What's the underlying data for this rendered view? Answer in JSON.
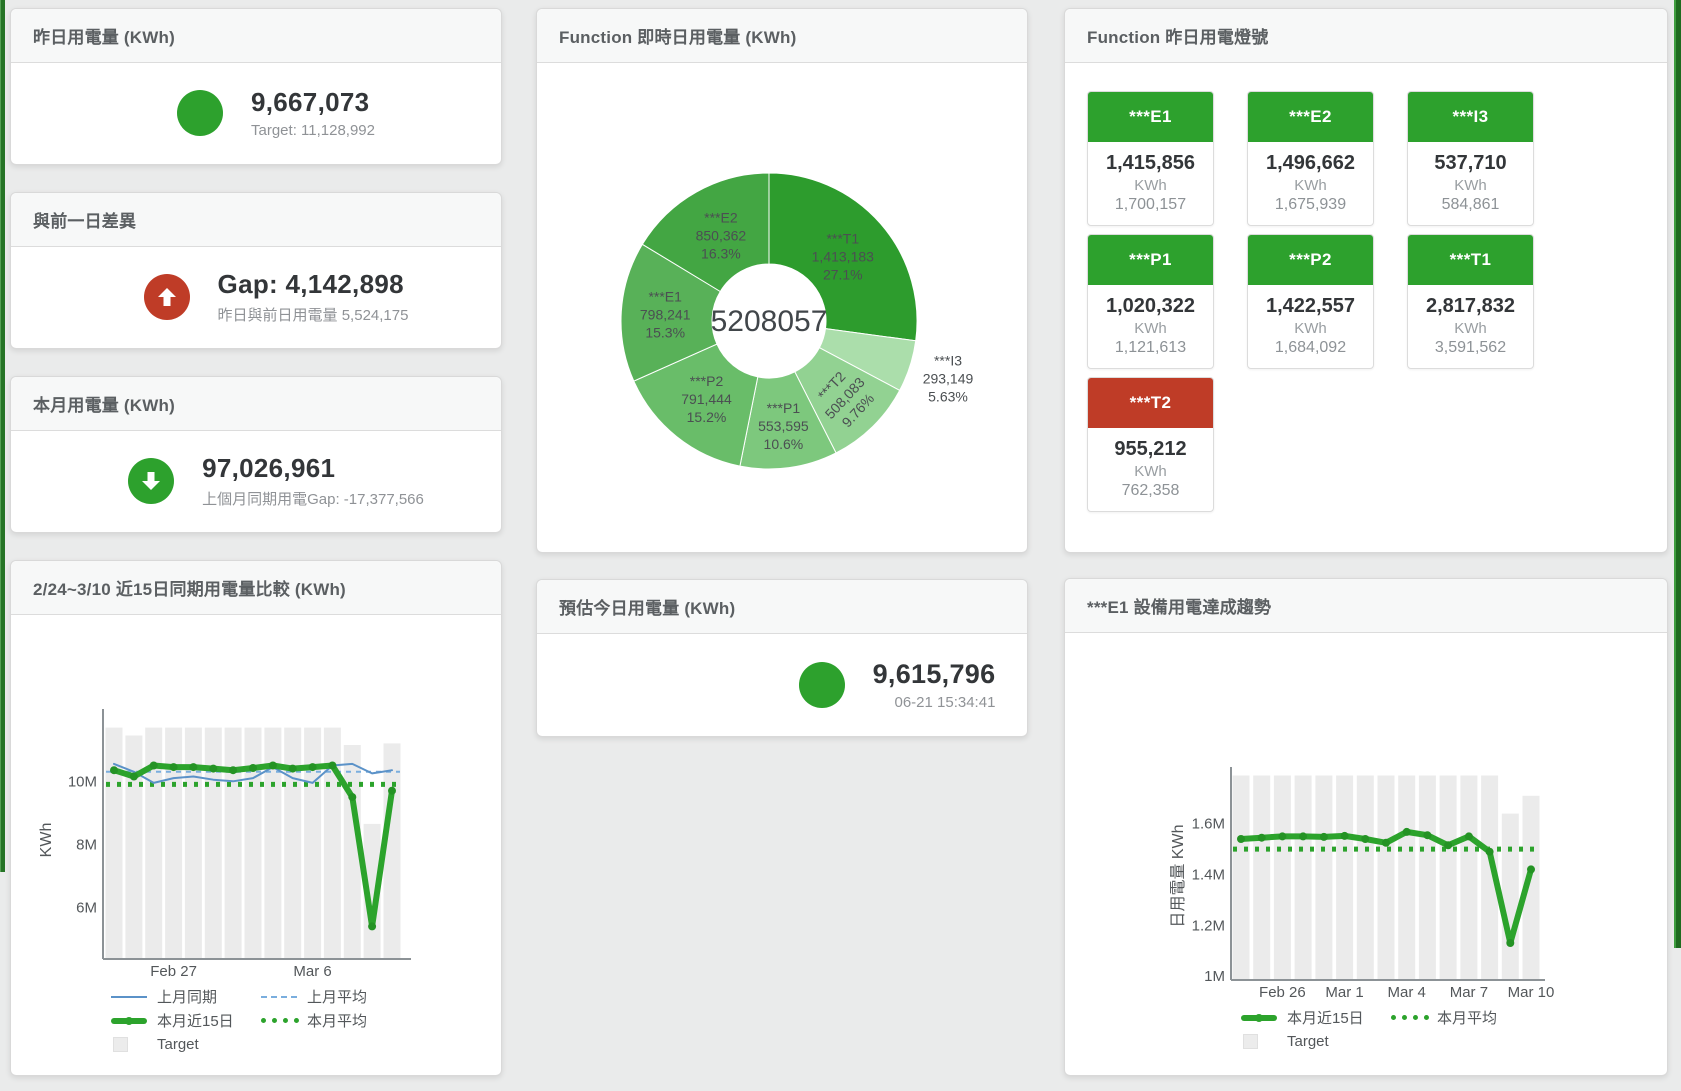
{
  "page": {
    "bg": "#eaebeb",
    "accent_green": "#2da12d",
    "accent_red": "#bf3c27",
    "edge_green": "#267426"
  },
  "stat_cards": {
    "yesterday": {
      "title": "昨日用電量 (KWh)",
      "value": "9,667,073",
      "sub": "Target: 11,128,992",
      "status_color": "#2da12d",
      "icon": "circle"
    },
    "day_gap": {
      "title": "與前一日差異",
      "value": "Gap: 4,142,898",
      "sub": "昨日與前日用電量 5,524,175",
      "status_color": "#bf3c27",
      "icon": "arrow-up"
    },
    "month": {
      "title": "本月用電量 (KWh)",
      "value": "97,026,961",
      "sub": "上個月同期用電Gap: -17,377,566",
      "status_color": "#2da12d",
      "icon": "arrow-down"
    },
    "estimate": {
      "title": "預估今日用電量 (KWh)",
      "value": "9,615,796",
      "sub": "06-21 15:34:41",
      "status_color": "#2da12d",
      "icon": "circle"
    }
  },
  "donut_panel": {
    "title": "Function 即時日用電量 (KWh)",
    "center_total": "5208057"
  },
  "lights_panel": {
    "title": "Function 昨日用電燈號",
    "cards": [
      {
        "label": "***E1",
        "value": "1,415,856",
        "unit": "KWh",
        "target": "1,700,157",
        "status": "green"
      },
      {
        "label": "***E2",
        "value": "1,496,662",
        "unit": "KWh",
        "target": "1,675,939",
        "status": "green"
      },
      {
        "label": "***I3",
        "value": "537,710",
        "unit": "KWh",
        "target": "584,861",
        "status": "green"
      },
      {
        "label": "***P1",
        "value": "1,020,322",
        "unit": "KWh",
        "target": "1,121,613",
        "status": "green"
      },
      {
        "label": "***P2",
        "value": "1,422,557",
        "unit": "KWh",
        "target": "1,684,092",
        "status": "green"
      },
      {
        "label": "***T1",
        "value": "2,817,832",
        "unit": "KWh",
        "target": "3,591,562",
        "status": "green"
      },
      {
        "label": "***T2",
        "value": "955,212",
        "unit": "KWh",
        "target": "762,358",
        "status": "red"
      }
    ]
  },
  "trend_panel": {
    "title": "2/24~3/10 近15日同期用電量比較 (KWh)",
    "legend": [
      {
        "label": "上月同期",
        "marker": "line",
        "color": "#5b92c8"
      },
      {
        "label": "上月平均",
        "marker": "dash",
        "color": "#7aaede"
      },
      {
        "label": "本月近15日",
        "marker": "thick",
        "color": "#2ca32c"
      },
      {
        "label": "本月平均",
        "marker": "dots",
        "color": "#2ca32c"
      },
      {
        "label": "Target",
        "marker": "square",
        "color": "#ececec"
      }
    ]
  },
  "e1_panel": {
    "title": "***E1 設備用電達成趨勢",
    "legend": [
      {
        "label": "本月近15日",
        "marker": "thick",
        "color": "#2ca32c"
      },
      {
        "label": "本月平均",
        "marker": "dots",
        "color": "#2ca32c"
      },
      {
        "label": "Target",
        "marker": "square",
        "color": "#ececec"
      }
    ]
  },
  "chart_data": [
    {
      "id": "donut",
      "type": "pie",
      "title": "Function 即時日用電量 (KWh)",
      "center_total": "5208057",
      "unit": "KWh",
      "slices": [
        {
          "label": "***T1",
          "value": 1413183,
          "pct": "27.1%",
          "color": "#2d9c2d",
          "label_r": 98
        },
        {
          "label": "***I3",
          "value": 293149,
          "pct": "5.63%",
          "color": "#abdeab",
          "label_r": 188
        },
        {
          "label": "***T2",
          "value": 508083,
          "pct": "9.76%",
          "color": "#92d292",
          "label_r": 108,
          "rotate": -47
        },
        {
          "label": "***P1",
          "value": 553595,
          "pct": "10.6%",
          "color": "#7dc87d",
          "label_r": 106
        },
        {
          "label": "***P2",
          "value": 791444,
          "pct": "15.2%",
          "color": "#69bd69",
          "label_r": 100
        },
        {
          "label": "***E1",
          "value": 798241,
          "pct": "15.3%",
          "color": "#58b158",
          "label_r": 104
        },
        {
          "label": "***E2",
          "value": 850362,
          "pct": "16.3%",
          "color": "#43a643",
          "label_r": 98
        }
      ]
    },
    {
      "id": "trend15",
      "type": "bar",
      "title": "2/24~3/10 近15日同期用電量比較 (KWh)",
      "ylabel": "KWh",
      "unit": "M KWh",
      "ylim_m": [
        4.4,
        12.1
      ],
      "grid": false,
      "legend_position": "bottom-left",
      "yticks": [
        {
          "v": 6,
          "label": "6M"
        },
        {
          "v": 8,
          "label": "8M"
        },
        {
          "v": 10,
          "label": "10M"
        }
      ],
      "xticks": [
        {
          "i": 3,
          "label": "Feb 27"
        },
        {
          "i": 10,
          "label": "Mar 6"
        }
      ],
      "bar_color": "#ebebeb",
      "target_bars_m": [
        11.7,
        11.45,
        11.7,
        11.7,
        11.7,
        11.7,
        11.7,
        11.7,
        11.7,
        11.7,
        11.7,
        11.7,
        11.15,
        8.65,
        11.2
      ],
      "lines": [
        {
          "name": "上月同期",
          "color": "#5b92c8",
          "width": 2,
          "values_m": [
            10.55,
            10.3,
            9.95,
            10.1,
            10.15,
            10.05,
            10.0,
            10.1,
            10.45,
            10.1,
            9.95,
            10.5,
            10.55,
            10.25,
            10.35
          ]
        },
        {
          "name": "本月近15日",
          "color": "#2ca32c",
          "width": 6,
          "values_m": [
            10.35,
            10.15,
            10.5,
            10.45,
            10.45,
            10.4,
            10.35,
            10.42,
            10.5,
            10.4,
            10.45,
            10.5,
            9.5,
            5.4,
            9.7
          ]
        }
      ],
      "avg_lines": [
        {
          "name": "上月平均",
          "color": "#7aaede",
          "width": 2,
          "dash": "5 5",
          "value_m": 10.3
        },
        {
          "name": "本月平均",
          "color": "#2ca32c",
          "width": 5,
          "dash": "4 7",
          "value_m": 9.9
        }
      ]
    },
    {
      "id": "e1trend",
      "type": "bar",
      "title": "***E1 設備用電達成趨勢",
      "ylabel": "日用電量 KWh",
      "unit": "M KWh",
      "ylim_m": [
        1.0,
        1.8
      ],
      "grid": false,
      "legend_position": "bottom-left",
      "yticks": [
        {
          "v": 1.0,
          "label": "1M"
        },
        {
          "v": 1.2,
          "label": "1.2M"
        },
        {
          "v": 1.4,
          "label": "1.4M"
        },
        {
          "v": 1.6,
          "label": "1.6M"
        }
      ],
      "xticks": [
        {
          "i": 2,
          "label": "Feb 26"
        },
        {
          "i": 5,
          "label": "Mar 1"
        },
        {
          "i": 8,
          "label": "Mar 4"
        },
        {
          "i": 11,
          "label": "Mar 7"
        },
        {
          "i": 14,
          "label": "Mar 10"
        }
      ],
      "bar_color": "#ebebeb",
      "target_bars_m": [
        1.79,
        1.79,
        1.79,
        1.79,
        1.79,
        1.79,
        1.79,
        1.79,
        1.79,
        1.79,
        1.79,
        1.79,
        1.79,
        1.64,
        1.71
      ],
      "lines": [
        {
          "name": "本月近15日",
          "color": "#2ca32c",
          "width": 6,
          "values_m": [
            1.54,
            1.545,
            1.55,
            1.55,
            1.548,
            1.552,
            1.54,
            1.525,
            1.568,
            1.555,
            1.515,
            1.55,
            1.49,
            1.13,
            1.42
          ]
        }
      ],
      "avg_lines": [
        {
          "name": "本月平均",
          "color": "#2ca32c",
          "width": 5,
          "dash": "4 7",
          "value_m": 1.5
        }
      ]
    }
  ]
}
